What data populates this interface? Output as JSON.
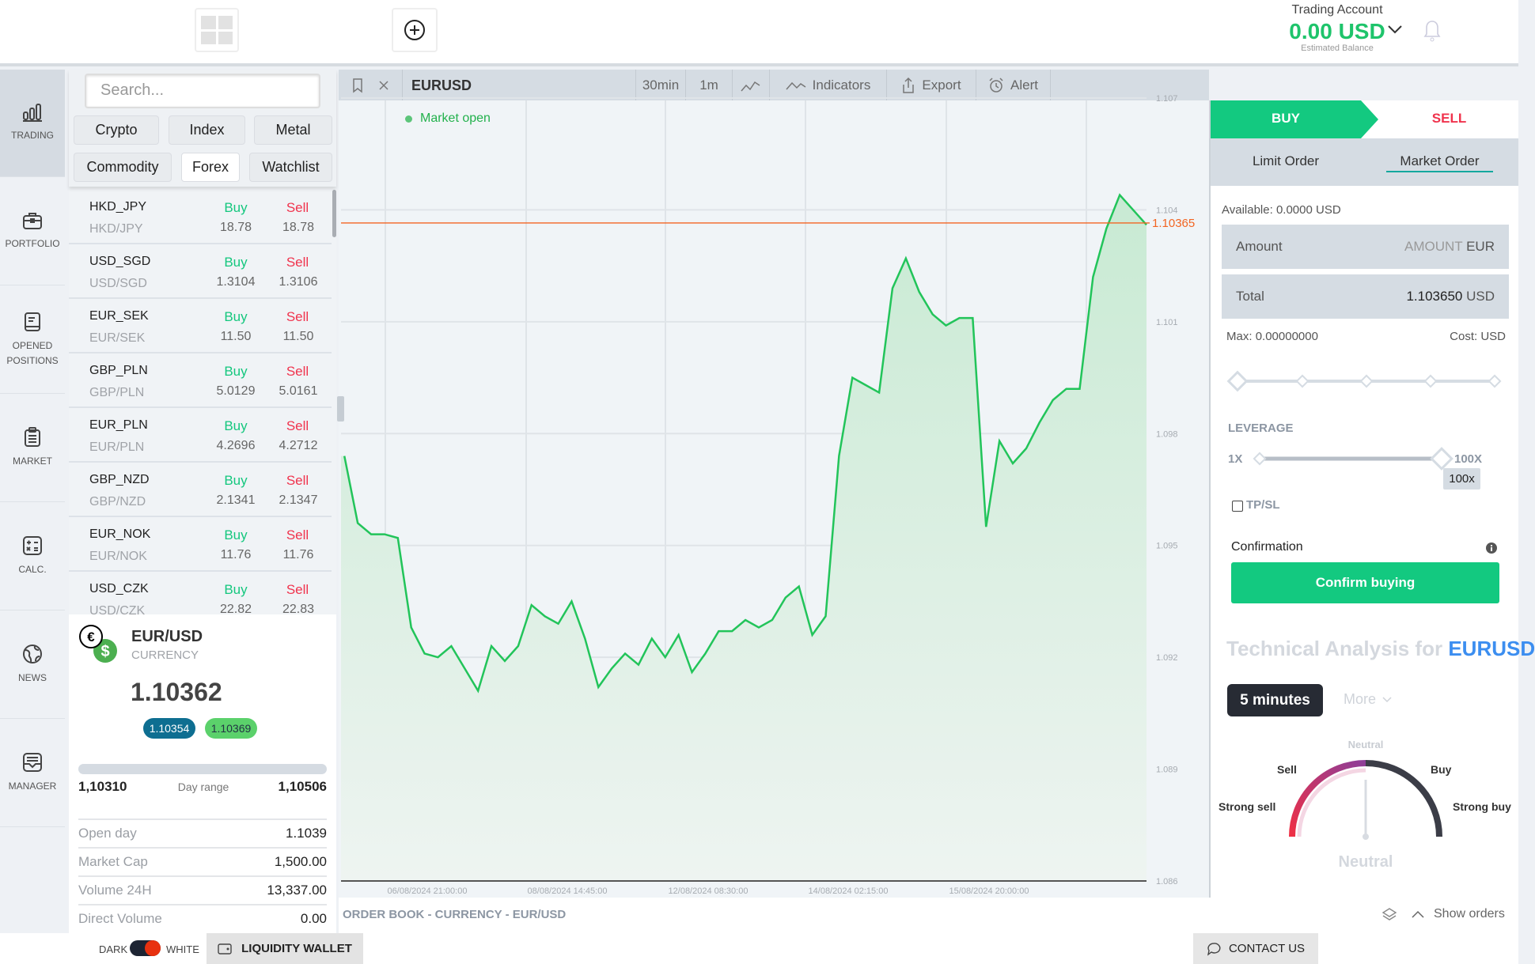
{
  "header": {
    "account_title": "Trading Account",
    "balance": "0.00 USD",
    "balance_caption": "Estimated Balance"
  },
  "sidebar": {
    "items": [
      {
        "label": "TRADING",
        "icon": "bar-chart-icon",
        "active": true
      },
      {
        "label": "PORTFOLIO",
        "icon": "briefcase-icon"
      },
      {
        "label": "OPENED POSITIONS",
        "icon": "book-icon"
      },
      {
        "label": "MARKET",
        "icon": "clipboard-list-icon"
      },
      {
        "label": "CALC.",
        "icon": "calculator-icon"
      },
      {
        "label": "NEWS",
        "icon": "globe-icon"
      },
      {
        "label": "MANAGER",
        "icon": "inbox-icon"
      }
    ]
  },
  "market": {
    "search_placeholder": "Search...",
    "filters": [
      "Crypto",
      "Index",
      "Metal",
      "Commodity",
      "Forex",
      "Watchlist"
    ],
    "selected_filter": "Forex",
    "buy_label": "Buy",
    "sell_label": "Sell",
    "rows": [
      {
        "symbol": "HKD_JPY",
        "pair": "HKD/JPY",
        "buy": "18.78",
        "sell": "18.78"
      },
      {
        "symbol": "USD_SGD",
        "pair": "USD/SGD",
        "buy": "1.3104",
        "sell": "1.3106"
      },
      {
        "symbol": "EUR_SEK",
        "pair": "EUR/SEK",
        "buy": "11.50",
        "sell": "11.50"
      },
      {
        "symbol": "GBP_PLN",
        "pair": "GBP/PLN",
        "buy": "5.0129",
        "sell": "5.0161"
      },
      {
        "symbol": "EUR_PLN",
        "pair": "EUR/PLN",
        "buy": "4.2696",
        "sell": "4.2712"
      },
      {
        "symbol": "GBP_NZD",
        "pair": "GBP/NZD",
        "buy": "2.1341",
        "sell": "2.1347"
      },
      {
        "symbol": "EUR_NOK",
        "pair": "EUR/NOK",
        "buy": "11.76",
        "sell": "11.76"
      },
      {
        "symbol": "USD_CZK",
        "pair": "USD/CZK",
        "buy": "22.82",
        "sell": "22.83"
      }
    ]
  },
  "detail": {
    "pair": "EUR/USD",
    "type": "CURRENCY",
    "price": "1.10362",
    "bid": "1.10354",
    "ask": "1.10369",
    "range_low": "1,10310",
    "range_label": "Day range",
    "range_high": "1,10506",
    "stats": [
      {
        "key": "Open day",
        "value": "1.1039"
      },
      {
        "key": "Market Cap",
        "value": "1,500.00"
      },
      {
        "key": "Volume 24H",
        "value": "13,337.00"
      },
      {
        "key": "Direct Volume",
        "value": "0.00"
      }
    ],
    "colors": {
      "bid": "#0e6e91",
      "ask": "#5bd16b"
    }
  },
  "toolbar": {
    "symbol": "EURUSD",
    "interval": "30min",
    "range": "1m",
    "indicators": "Indicators",
    "export": "Export",
    "alert": "Alert"
  },
  "chart_data": {
    "type": "area",
    "status": "Market open",
    "current_price_label": "1.10365",
    "current_price": 1.10365,
    "ylim": [
      1.086,
      1.107
    ],
    "yticks": [
      "1.107",
      "1.104",
      "1.101",
      "1.098",
      "1.095",
      "1.092",
      "1.089",
      "1.086"
    ],
    "xticks": [
      "06/08/2024 21:00:00",
      "08/08/2024 14:45:00",
      "12/08/2024 08:30:00",
      "14/08/2024 02:15:00",
      "15/08/2024 20:00:00"
    ],
    "grid": true,
    "colors": {
      "line": "#22c45a",
      "fill": "#c8ead3",
      "price_line": "#f26522"
    },
    "series": [
      {
        "x": [
          "05/08/2024 12:00",
          "05/08/2024 16:00",
          "05/08/2024 20:00",
          "06/08/2024 00:00",
          "06/08/2024 04:00",
          "06/08/2024 08:00",
          "06/08/2024 12:00",
          "06/08/2024 16:00",
          "06/08/2024 20:00",
          "07/08/2024 00:00",
          "07/08/2024 04:00",
          "07/08/2024 08:00",
          "07/08/2024 12:00",
          "07/08/2024 16:00",
          "07/08/2024 20:00",
          "08/08/2024 00:00",
          "08/08/2024 04:00",
          "08/08/2024 08:00",
          "08/08/2024 12:00",
          "08/08/2024 16:00",
          "08/08/2024 20:00",
          "09/08/2024 00:00",
          "09/08/2024 04:00",
          "09/08/2024 08:00",
          "09/08/2024 12:00",
          "09/08/2024 16:00",
          "09/08/2024 20:00",
          "12/08/2024 00:00",
          "12/08/2024 04:00",
          "12/08/2024 08:00",
          "12/08/2024 12:00",
          "12/08/2024 16:00",
          "12/08/2024 20:00",
          "13/08/2024 00:00",
          "13/08/2024 04:00",
          "13/08/2024 08:00",
          "13/08/2024 12:00",
          "13/08/2024 16:00",
          "13/08/2024 20:00",
          "14/08/2024 00:00",
          "14/08/2024 04:00",
          "14/08/2024 08:00",
          "14/08/2024 12:00",
          "14/08/2024 16:00",
          "14/08/2024 20:00",
          "15/08/2024 00:00",
          "15/08/2024 04:00",
          "15/08/2024 08:00",
          "15/08/2024 12:00",
          "15/08/2024 16:00",
          "15/08/2024 20:00",
          "16/08/2024 00:00",
          "16/08/2024 04:00",
          "16/08/2024 08:00",
          "16/08/2024 12:00",
          "16/08/2024 16:00",
          "16/08/2024 20:00",
          "19/08/2024 00:00",
          "19/08/2024 04:00",
          "19/08/2024 08:00",
          "19/08/2024 12:00"
        ],
        "y": [
          1.0974,
          1.0956,
          1.0953,
          1.0953,
          1.0952,
          1.0928,
          1.0921,
          1.092,
          1.0923,
          1.0917,
          1.0911,
          1.0923,
          1.0919,
          1.0923,
          1.0934,
          1.0931,
          1.0929,
          1.0935,
          1.0925,
          1.0912,
          1.0917,
          1.0921,
          1.0918,
          1.0925,
          1.092,
          1.0926,
          1.0916,
          1.0921,
          1.0927,
          1.0927,
          1.093,
          1.0928,
          1.093,
          1.0936,
          1.0939,
          1.0926,
          1.0931,
          1.0974,
          1.0995,
          1.0993,
          1.0991,
          1.1019,
          1.1027,
          1.1018,
          1.1012,
          1.1009,
          1.1011,
          1.1011,
          1.0955,
          1.0978,
          1.0972,
          1.0976,
          1.0983,
          1.0989,
          1.0992,
          1.0992,
          1.1022,
          1.1035,
          1.1044,
          1.104,
          1.1036
        ]
      }
    ]
  },
  "order": {
    "buy_tab": "BUY",
    "sell_tab": "SELL",
    "limit_order": "Limit Order",
    "market_order": "Market Order",
    "available_label": "Available:",
    "available_value": "0.0000 USD",
    "amount_label": "Amount",
    "amount_placeholder": "AMOUNT",
    "amount_unit": "EUR",
    "total_label": "Total",
    "total_value": "1.103650",
    "total_unit": "USD",
    "max_label": "Max:",
    "max_value": "0.00000000",
    "cost_label": "Cost:",
    "cost_unit": "USD",
    "amount_slider_percent": 0,
    "leverage_label": "LEVERAGE",
    "leverage_min": "1X",
    "leverage_max": "100X",
    "leverage_value": "100x",
    "tpsl_label": "TP/SL",
    "tpsl_checked": false,
    "confirmation_label": "Confirmation",
    "confirm_button": "Confirm buying",
    "colors": {
      "buy": "#13c980",
      "sell": "#f0334d"
    }
  },
  "analysis": {
    "title_prefix": "Technical Analysis for",
    "title_symbol": "EURUSD",
    "interval": "5 minutes",
    "more": "More",
    "gauge_labels": {
      "top": "Neutral",
      "sell": "Sell",
      "buy": "Buy",
      "strong_sell": "Strong sell",
      "strong_buy": "Strong buy"
    },
    "summary": "Neutral"
  },
  "orderbook": {
    "title": "ORDER BOOK - CURRENCY - EUR/USD",
    "show_orders": "Show orders"
  },
  "footer": {
    "dark": "DARK",
    "white": "WHITE",
    "wallet": "LIQUIDITY WALLET",
    "contact": "CONTACT US"
  }
}
